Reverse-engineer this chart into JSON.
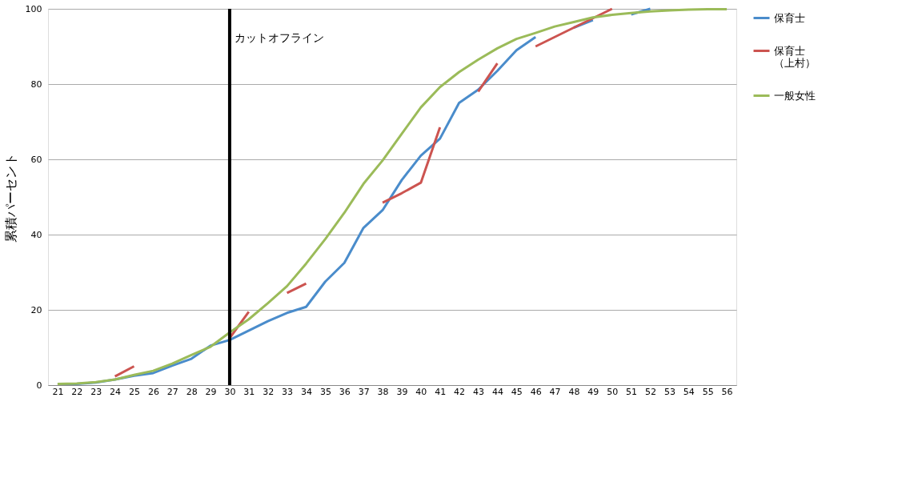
{
  "chart_data": {
    "type": "line",
    "ylabel": "累積パーセント",
    "categories": [
      "21",
      "22",
      "23",
      "24",
      "25",
      "26",
      "27",
      "28",
      "29",
      "30",
      "31",
      "32",
      "33",
      "34",
      "35",
      "36",
      "37",
      "38",
      "39",
      "40",
      "41",
      "42",
      "43",
      "44",
      "45",
      "46",
      "47",
      "48",
      "49",
      "50",
      "51",
      "52",
      "53",
      "54",
      "55",
      "56"
    ],
    "series": [
      {
        "name": "保育士",
        "color": "#4a8ccb",
        "values": [
          0.3,
          0.3,
          0.7,
          1.5,
          2.5,
          3.2,
          5.2,
          7,
          10.5,
          12,
          14.5,
          17,
          19.2,
          20.8,
          27.5,
          32.5,
          41.8,
          46.5,
          54.5,
          61,
          65.5,
          75,
          78.5,
          83.5,
          89,
          92.5,
          null,
          95,
          97,
          null,
          98.5,
          100,
          null,
          null,
          null,
          null
        ]
      },
      {
        "name": "保育士（上村）",
        "color": "#cc5450",
        "values": [
          null,
          null,
          null,
          2.3,
          5,
          null,
          null,
          null,
          null,
          12.5,
          19.5,
          null,
          24.5,
          27,
          null,
          null,
          null,
          48.5,
          51,
          53.8,
          68.5,
          null,
          78,
          85.5,
          null,
          90,
          92.5,
          95,
          97.5,
          100,
          null,
          null,
          null,
          null,
          null,
          null
        ]
      },
      {
        "name": "一般女性",
        "color": "#9bbb59",
        "values": [
          0.3,
          0.4,
          0.8,
          1.5,
          2.7,
          3.8,
          5.7,
          8,
          10.2,
          14,
          17.5,
          21.8,
          26.3,
          32.3,
          38.8,
          45.8,
          53.5,
          59.7,
          66.8,
          73.8,
          79.2,
          83.2,
          86.5,
          89.5,
          92,
          93.6,
          95.3,
          96.5,
          97.7,
          98.4,
          98.9,
          99.3,
          99.6,
          99.8,
          99.9,
          99.9
        ]
      }
    ],
    "ylim": [
      0,
      100
    ],
    "yticks": [
      0,
      20,
      40,
      60,
      80,
      100
    ],
    "grid": "y",
    "legend": "right",
    "ref_lines": [
      {
        "axis": "x",
        "value": "30",
        "label": "カットオフライン",
        "color": "#000000"
      }
    ]
  }
}
